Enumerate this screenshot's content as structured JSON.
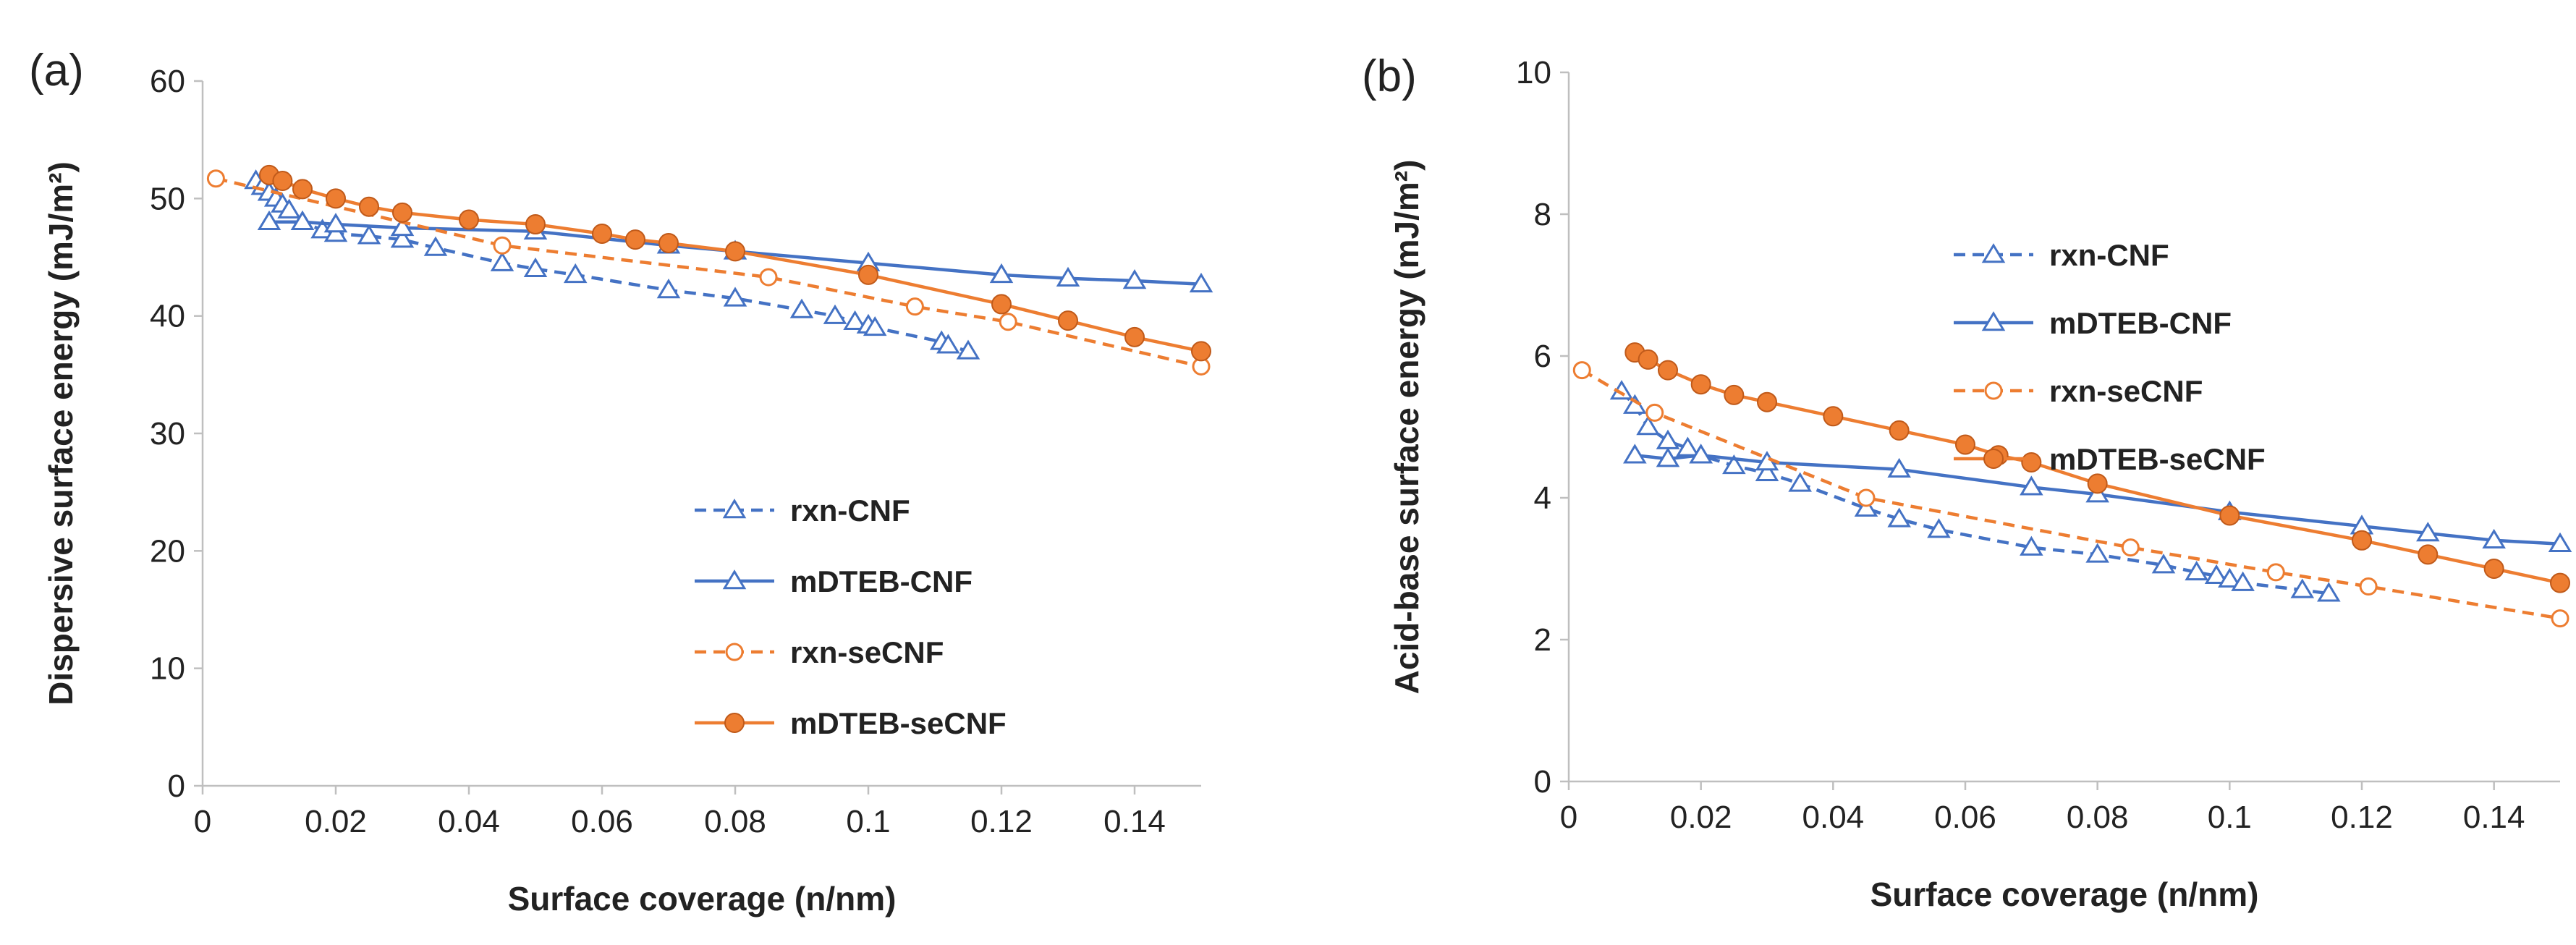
{
  "chart_data": [
    {
      "type": "line",
      "panel_label": "(a)",
      "title": "",
      "xlabel": "Surface coverage (n/nm)",
      "ylabel": "Dispersive surface energy (mJ/m²)",
      "xlim": [
        0,
        0.15
      ],
      "ylim": [
        0,
        60
      ],
      "xticks": [
        0,
        0.02,
        0.04,
        0.06,
        0.08,
        0.1,
        0.12,
        0.14
      ],
      "xtick_labels": [
        "0",
        "0.02",
        "0.04",
        "0.06",
        "0.08",
        "0.1",
        "0.12",
        "0.14"
      ],
      "yticks": [
        0,
        10,
        20,
        30,
        40,
        50,
        60
      ],
      "ytick_labels": [
        "0",
        "10",
        "20",
        "30",
        "40",
        "50",
        "60"
      ],
      "grid": false,
      "legend_position": "lower-right",
      "series": [
        {
          "name": "rxn-CNF",
          "color": "#4472C4",
          "line": "dashed",
          "marker": "triangle-open",
          "x": [
            0.008,
            0.009,
            0.01,
            0.011,
            0.012,
            0.013,
            0.015,
            0.018,
            0.02,
            0.025,
            0.03,
            0.035,
            0.045,
            0.05,
            0.056,
            0.07,
            0.08,
            0.09,
            0.095,
            0.098,
            0.1,
            0.101,
            0.111,
            0.112,
            0.115
          ],
          "y": [
            51.5,
            51,
            50.5,
            50,
            49.5,
            49,
            48,
            47.3,
            47,
            46.8,
            46.5,
            45.8,
            44.5,
            44,
            43.5,
            42.2,
            41.5,
            40.5,
            40,
            39.5,
            39.2,
            39,
            37.8,
            37.5,
            37
          ]
        },
        {
          "name": "mDTEB-CNF",
          "color": "#4472C4",
          "line": "solid",
          "marker": "triangle-open",
          "x": [
            0.01,
            0.015,
            0.02,
            0.03,
            0.05,
            0.07,
            0.08,
            0.1,
            0.12,
            0.13,
            0.14,
            0.15
          ],
          "y": [
            48,
            48,
            47.8,
            47.5,
            47.2,
            46,
            45.5,
            44.5,
            43.5,
            43.2,
            43,
            42.7
          ]
        },
        {
          "name": "rxn-seCNF",
          "color": "#ED7D31",
          "line": "dashed",
          "marker": "circle-open",
          "x": [
            0.002,
            0.045,
            0.085,
            0.107,
            0.121,
            0.15
          ],
          "y": [
            51.7,
            46,
            43.3,
            40.8,
            39.5,
            35.7
          ]
        },
        {
          "name": "mDTEB-seCNF",
          "color": "#ED7D31",
          "line": "solid",
          "marker": "circle-filled",
          "x": [
            0.01,
            0.012,
            0.015,
            0.02,
            0.025,
            0.03,
            0.04,
            0.05,
            0.06,
            0.065,
            0.07,
            0.08,
            0.1,
            0.12,
            0.13,
            0.14,
            0.15
          ],
          "y": [
            52,
            51.5,
            50.8,
            50,
            49.3,
            48.8,
            48.2,
            47.8,
            47,
            46.5,
            46.2,
            45.5,
            43.5,
            41,
            39.6,
            38.2,
            37
          ]
        }
      ]
    },
    {
      "type": "line",
      "panel_label": "(b)",
      "title": "",
      "xlabel": "Surface coverage (n/nm)",
      "ylabel": "Acid-base surface energy (mJ/m²)",
      "xlim": [
        0,
        0.15
      ],
      "ylim": [
        0,
        10
      ],
      "xticks": [
        0,
        0.02,
        0.04,
        0.06,
        0.08,
        0.1,
        0.12,
        0.14
      ],
      "xtick_labels": [
        "0",
        "0.02",
        "0.04",
        "0.06",
        "0.08",
        "0.1",
        "0.12",
        "0.14"
      ],
      "yticks": [
        0,
        2,
        4,
        6,
        8,
        10
      ],
      "ytick_labels": [
        "0",
        "2",
        "4",
        "6",
        "8",
        "10"
      ],
      "grid": false,
      "legend_position": "upper-right",
      "series": [
        {
          "name": "rxn-CNF",
          "color": "#4472C4",
          "line": "dashed",
          "marker": "triangle-open",
          "x": [
            0.008,
            0.01,
            0.012,
            0.015,
            0.018,
            0.02,
            0.025,
            0.03,
            0.035,
            0.045,
            0.05,
            0.056,
            0.07,
            0.08,
            0.09,
            0.095,
            0.098,
            0.1,
            0.102,
            0.111,
            0.115
          ],
          "y": [
            5.5,
            5.3,
            5.0,
            4.8,
            4.7,
            4.6,
            4.45,
            4.35,
            4.2,
            3.85,
            3.7,
            3.55,
            3.3,
            3.2,
            3.05,
            2.95,
            2.9,
            2.85,
            2.8,
            2.7,
            2.65
          ]
        },
        {
          "name": "mDTEB-CNF",
          "color": "#4472C4",
          "line": "solid",
          "marker": "triangle-open",
          "x": [
            0.01,
            0.015,
            0.02,
            0.03,
            0.05,
            0.07,
            0.08,
            0.1,
            0.12,
            0.13,
            0.14,
            0.15
          ],
          "y": [
            4.6,
            4.55,
            4.6,
            4.5,
            4.4,
            4.15,
            4.05,
            3.8,
            3.6,
            3.5,
            3.4,
            3.35
          ]
        },
        {
          "name": "rxn-seCNF",
          "color": "#ED7D31",
          "line": "dashed",
          "marker": "circle-open",
          "x": [
            0.002,
            0.013,
            0.045,
            0.085,
            0.107,
            0.121,
            0.15
          ],
          "y": [
            5.8,
            5.2,
            4.0,
            3.3,
            2.95,
            2.75,
            2.3
          ]
        },
        {
          "name": "mDTEB-seCNF",
          "color": "#ED7D31",
          "line": "solid",
          "marker": "circle-filled",
          "x": [
            0.01,
            0.012,
            0.015,
            0.02,
            0.025,
            0.03,
            0.04,
            0.05,
            0.06,
            0.065,
            0.07,
            0.08,
            0.1,
            0.12,
            0.13,
            0.14,
            0.15
          ],
          "y": [
            6.05,
            5.95,
            5.8,
            5.6,
            5.45,
            5.35,
            5.15,
            4.95,
            4.75,
            4.6,
            4.5,
            4.2,
            3.75,
            3.4,
            3.2,
            3.0,
            2.8
          ]
        }
      ]
    }
  ]
}
